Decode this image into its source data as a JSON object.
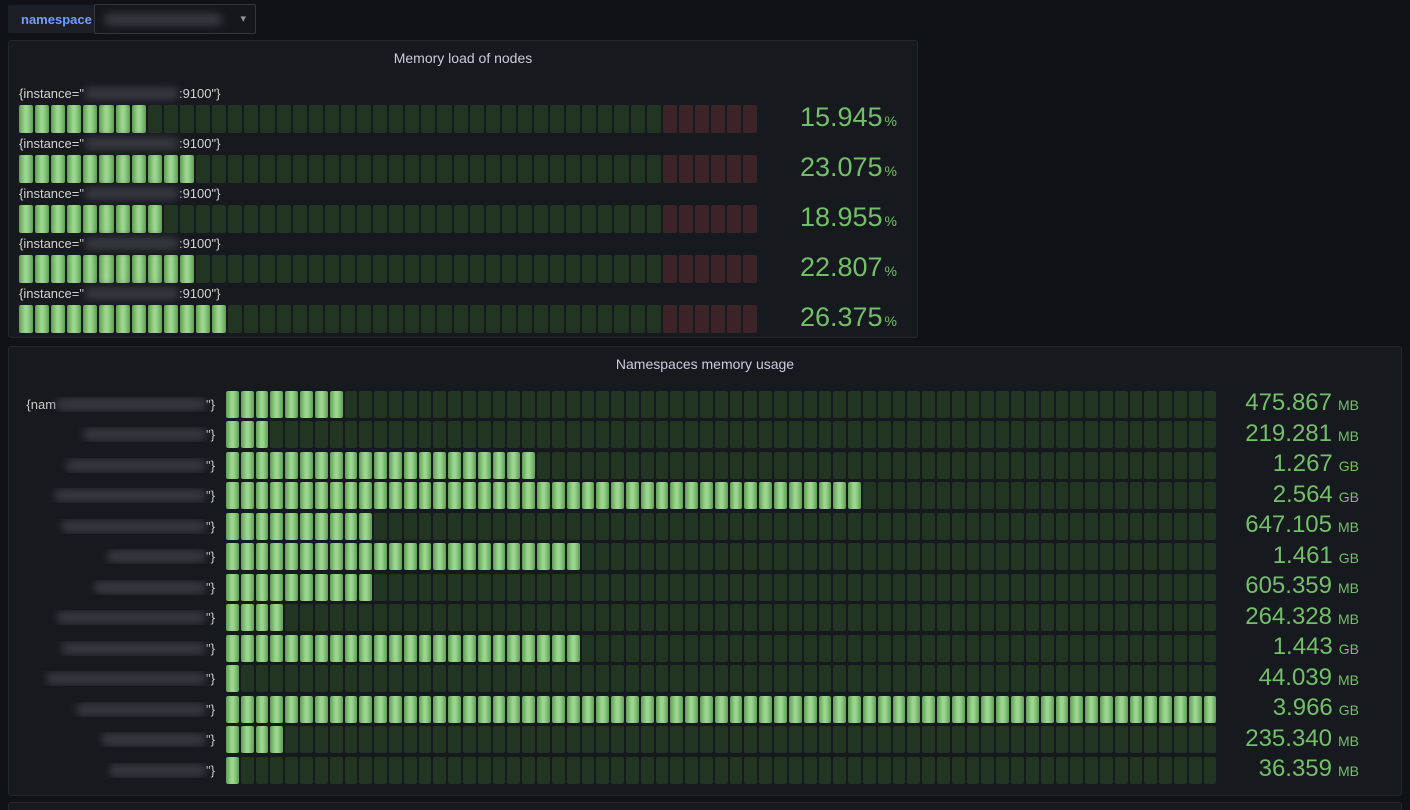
{
  "topbar": {
    "variable_label": "namespace",
    "dropdown": {
      "value_redacted": true,
      "caret": "▾"
    }
  },
  "colors": {
    "page_bg": "#111217",
    "panel_bg": "#16191e",
    "value_green": "#73bf69",
    "segment_lit": "#9bd68e",
    "segment_unlit_green": "#213522",
    "segment_unlit_red": "#3b2327",
    "variable_label_blue": "#6e9fff"
  },
  "panels": [
    {
      "title": "Memory load of nodes",
      "segments_total": 46,
      "segments_red": 6,
      "rows": [
        {
          "label_prefix": "{instance=\"",
          "label_suffix": ":9100\"}",
          "value": "15.945",
          "unit": "%",
          "lit": 8,
          "blur_w": 95
        },
        {
          "label_prefix": "{instance=\"",
          "label_suffix": ":9100\"}",
          "value": "23.075",
          "unit": "%",
          "lit": 11,
          "blur_w": 95
        },
        {
          "label_prefix": "{instance=\"",
          "label_suffix": ":9100\"}",
          "value": "18.955",
          "unit": "%",
          "lit": 9,
          "blur_w": 95
        },
        {
          "label_prefix": "{instance=\"",
          "label_suffix": ":9100\"}",
          "value": "22.807",
          "unit": "%",
          "lit": 11,
          "blur_w": 95
        },
        {
          "label_prefix": "{instance=\"",
          "label_suffix": ":9100\"}",
          "value": "26.375",
          "unit": "%",
          "lit": 13,
          "blur_w": 95
        }
      ]
    },
    {
      "title": "Namespaces memory usage",
      "segments_total": 67,
      "segments_red": 0,
      "rows": [
        {
          "label_prefix": "{nam",
          "label_suffix": "\"}",
          "value": "475.867",
          "unit": "MB",
          "lit": 8,
          "blur_w": 150
        },
        {
          "label_prefix": "",
          "label_suffix": "\"}",
          "value": "219.281",
          "unit": "MB",
          "lit": 3,
          "blur_w": 123
        },
        {
          "label_prefix": "",
          "label_suffix": "\"}",
          "value": "1.267",
          "unit": "GB",
          "lit": 21,
          "blur_w": 140
        },
        {
          "label_prefix": "",
          "label_suffix": "\"}",
          "value": "2.564",
          "unit": "GB",
          "lit": 43,
          "blur_w": 152
        },
        {
          "label_prefix": "",
          "label_suffix": "\"}",
          "value": "647.105",
          "unit": "MB",
          "lit": 10,
          "blur_w": 145
        },
        {
          "label_prefix": "",
          "label_suffix": "\"}",
          "value": "1.461",
          "unit": "GB",
          "lit": 24,
          "blur_w": 99
        },
        {
          "label_prefix": "",
          "label_suffix": "\"}",
          "value": "605.359",
          "unit": "MB",
          "lit": 10,
          "blur_w": 112
        },
        {
          "label_prefix": "",
          "label_suffix": "\"}",
          "value": "264.328",
          "unit": "MB",
          "lit": 4,
          "blur_w": 150
        },
        {
          "label_prefix": "",
          "label_suffix": "\"}",
          "value": "1.443",
          "unit": "GB",
          "lit": 24,
          "blur_w": 145
        },
        {
          "label_prefix": "",
          "label_suffix": "\"}",
          "value": "44.039",
          "unit": "MB",
          "lit": 1,
          "blur_w": 160
        },
        {
          "label_prefix": "",
          "label_suffix": "\"}",
          "value": "3.966",
          "unit": "GB",
          "lit": 67,
          "blur_w": 130
        },
        {
          "label_prefix": "",
          "label_suffix": "\"}",
          "value": "235.340",
          "unit": "MB",
          "lit": 4,
          "blur_w": 105
        },
        {
          "label_prefix": "",
          "label_suffix": "\"}",
          "value": "36.359",
          "unit": "MB",
          "lit": 1,
          "blur_w": 97
        }
      ]
    }
  ],
  "chart_data": [
    {
      "type": "bar",
      "title": "Memory load of nodes",
      "orientation": "horizontal",
      "unit": "%",
      "categories": [
        "instance :9100 (redacted)",
        "instance :9100 (redacted)",
        "instance :9100 (redacted)",
        "instance :9100 (redacted)",
        "instance :9100 (redacted)"
      ],
      "values": [
        15.945,
        23.075,
        18.955,
        22.807,
        26.375
      ],
      "xlim": [
        0,
        100
      ],
      "threshold_red_zone_fraction": 0.87
    },
    {
      "type": "bar",
      "title": "Namespaces memory usage",
      "orientation": "horizontal",
      "categories": [
        "namespace (redacted)",
        "namespace (redacted)",
        "namespace (redacted)",
        "namespace (redacted)",
        "namespace (redacted)",
        "namespace (redacted)",
        "namespace (redacted)",
        "namespace (redacted)",
        "namespace (redacted)",
        "namespace (redacted)",
        "namespace (redacted)",
        "namespace (redacted)",
        "namespace (redacted)"
      ],
      "values_display": [
        "475.867 MB",
        "219.281 MB",
        "1.267 GB",
        "2.564 GB",
        "647.105 MB",
        "1.461 GB",
        "605.359 MB",
        "264.328 MB",
        "1.443 GB",
        "44.039 MB",
        "3.966 GB",
        "235.340 MB",
        "36.359 MB"
      ],
      "values_mb": [
        475.867,
        219.281,
        1267,
        2564,
        647.105,
        1461,
        605.359,
        264.328,
        1443,
        44.039,
        3966,
        235.34,
        36.359
      ],
      "xlim_mb": [
        0,
        4061
      ]
    }
  ]
}
